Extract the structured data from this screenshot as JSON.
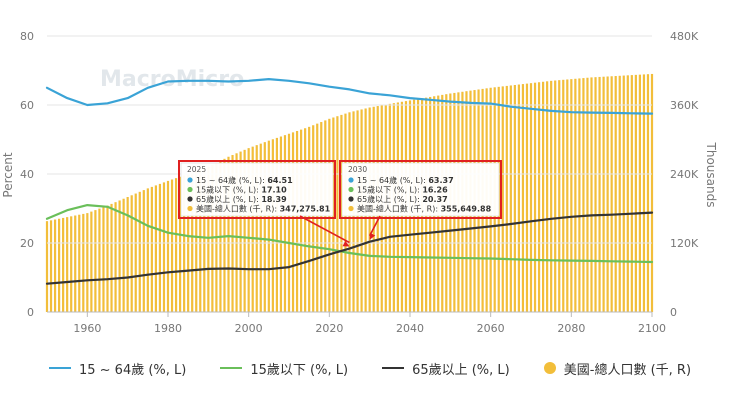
{
  "chart_data": {
    "type": "line",
    "title": "",
    "watermark": "MacroMicro",
    "xlabel": "",
    "ylabel_left": "Percent",
    "ylabel_right": "Thousands",
    "ylim_left": [
      0,
      80
    ],
    "ylim_right": [
      0,
      480000
    ],
    "xlim": [
      1950,
      2100
    ],
    "x_ticks": [
      "1960",
      "1980",
      "2000",
      "2020",
      "2040",
      "2060",
      "2080",
      "2100"
    ],
    "y_left_ticks": [
      "0",
      "20",
      "40",
      "60",
      "80"
    ],
    "y_right_ticks": [
      "0",
      "120K",
      "240K",
      "360K",
      "480K"
    ],
    "grid": true,
    "legend_position": "bottom",
    "series": [
      {
        "name": "15 ~ 64歲 (%, L)",
        "color": "#3aa3d6",
        "axis": "left",
        "x": [
          1950,
          1955,
          1960,
          1965,
          1970,
          1975,
          1980,
          1985,
          1990,
          1995,
          2000,
          2005,
          2010,
          2015,
          2020,
          2025,
          2030,
          2035,
          2040,
          2045,
          2050,
          2055,
          2060,
          2065,
          2070,
          2075,
          2080,
          2085,
          2090,
          2095,
          2100
        ],
        "y": [
          65.0,
          62.0,
          60.0,
          60.5,
          62.0,
          65.0,
          66.8,
          67.0,
          67.0,
          66.8,
          67.0,
          67.5,
          67.0,
          66.3,
          65.3,
          64.51,
          63.37,
          62.8,
          62.0,
          61.5,
          61.0,
          60.6,
          60.4,
          59.5,
          58.9,
          58.3,
          57.9,
          57.8,
          57.7,
          57.6,
          57.5
        ]
      },
      {
        "name": "15歲以下 (%, L)",
        "color": "#6abf5a",
        "axis": "left",
        "x": [
          1950,
          1955,
          1960,
          1965,
          1970,
          1975,
          1980,
          1985,
          1990,
          1995,
          2000,
          2005,
          2010,
          2015,
          2020,
          2025,
          2030,
          2035,
          2040,
          2045,
          2050,
          2055,
          2060,
          2065,
          2070,
          2075,
          2080,
          2085,
          2090,
          2095,
          2100
        ],
        "y": [
          27.0,
          29.5,
          31.0,
          30.5,
          28.0,
          25.0,
          23.0,
          22.0,
          21.5,
          22.0,
          21.5,
          21.0,
          20.0,
          19.0,
          18.2,
          17.1,
          16.26,
          16.0,
          15.9,
          15.8,
          15.7,
          15.6,
          15.5,
          15.3,
          15.1,
          15.0,
          14.9,
          14.8,
          14.7,
          14.6,
          14.5
        ]
      },
      {
        "name": "65歲以上 (%, L)",
        "color": "#333333",
        "axis": "left",
        "x": [
          1950,
          1955,
          1960,
          1965,
          1970,
          1975,
          1980,
          1985,
          1990,
          1995,
          2000,
          2005,
          2010,
          2015,
          2020,
          2025,
          2030,
          2035,
          2040,
          2045,
          2050,
          2055,
          2060,
          2065,
          2070,
          2075,
          2080,
          2085,
          2090,
          2095,
          2100
        ],
        "y": [
          8.2,
          8.7,
          9.2,
          9.5,
          10.0,
          10.8,
          11.5,
          12.0,
          12.5,
          12.6,
          12.4,
          12.4,
          13.0,
          14.8,
          16.7,
          18.39,
          20.37,
          21.8,
          22.4,
          23.0,
          23.6,
          24.2,
          24.8,
          25.5,
          26.3,
          27.0,
          27.6,
          28.0,
          28.2,
          28.5,
          28.8
        ]
      },
      {
        "name": "美國-總人口數 (千, R)",
        "color": "#f2be3a",
        "axis": "right",
        "type": "bar",
        "x": [
          1950,
          1955,
          1960,
          1965,
          1970,
          1975,
          1980,
          1985,
          1990,
          1995,
          2000,
          2005,
          2010,
          2015,
          2020,
          2025,
          2030,
          2035,
          2040,
          2045,
          2050,
          2055,
          2060,
          2065,
          2070,
          2075,
          2080,
          2085,
          2090,
          2095,
          2100
        ],
        "y": [
          158000,
          165000,
          172000,
          185000,
          200000,
          215000,
          228000,
          240000,
          252000,
          270000,
          285000,
          298000,
          310000,
          322000,
          336000,
          347275.81,
          355649.88,
          362000,
          368000,
          374000,
          380000,
          385000,
          390000,
          394000,
          398000,
          402000,
          405000,
          408000,
          410000,
          412000,
          414000
        ]
      }
    ],
    "tooltips": [
      {
        "year": "2025",
        "rows": [
          {
            "label": "15 ~ 64歲 (%, L): ",
            "value": "64.51",
            "color": "#3aa3d6"
          },
          {
            "label": "15歲以下 (%, L): ",
            "value": "17.10",
            "color": "#6abf5a"
          },
          {
            "label": "65歲以上 (%, L): ",
            "value": "18.39",
            "color": "#333333"
          },
          {
            "label": "美國-總人口數 (千, R): ",
            "value": "347,275.81",
            "color": "#f2be3a"
          }
        ]
      },
      {
        "year": "2030",
        "rows": [
          {
            "label": "15 ~ 64歲 (%, L): ",
            "value": "63.37",
            "color": "#3aa3d6"
          },
          {
            "label": "15歲以下 (%, L): ",
            "value": "16.26",
            "color": "#6abf5a"
          },
          {
            "label": "65歲以上 (%, L): ",
            "value": "20.37",
            "color": "#333333"
          },
          {
            "label": "美國-總人口數 (千, R): ",
            "value": "355,649.88",
            "color": "#f2be3a"
          }
        ]
      }
    ]
  }
}
